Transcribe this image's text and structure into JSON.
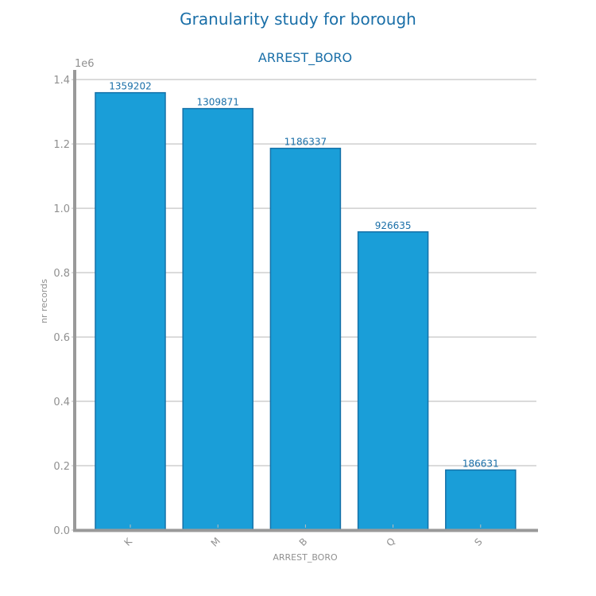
{
  "chart_data": {
    "type": "bar",
    "title": "Granularity study for borough",
    "subtitle": "ARREST_BORO",
    "xlabel": "ARREST_BORO",
    "ylabel": "nr records",
    "y_offset_label": "1e6",
    "categories": [
      "K",
      "M",
      "B",
      "Q",
      "S"
    ],
    "values": [
      1359202,
      1309871,
      1186337,
      926635,
      186631
    ],
    "data_labels": [
      "1359202",
      "1309871",
      "1186337",
      "926635",
      "186631"
    ],
    "ylim": [
      0,
      1430000
    ],
    "y_ticks": [
      0,
      200000,
      400000,
      600000,
      800000,
      1000000,
      1200000,
      1400000
    ],
    "y_tick_labels": [
      "0.0",
      "0.2",
      "0.4",
      "0.6",
      "0.8",
      "1.0",
      "1.2",
      "1.4"
    ],
    "grid": "horizontal",
    "colors": {
      "bar_fill": "#1a9ed8",
      "bar_edge": "#1571a8",
      "text_accent": "#1a6fa8",
      "axis": "#999999"
    }
  }
}
